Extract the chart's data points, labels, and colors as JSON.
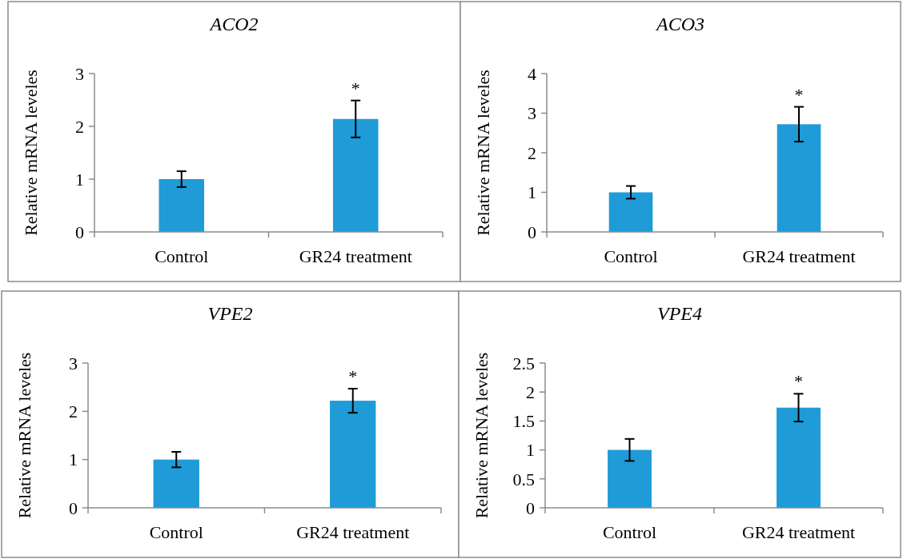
{
  "chart_data": [
    {
      "type": "bar",
      "title": "ACO2",
      "ylabel": "Relative mRNA leveles",
      "categories": [
        "Control",
        "GR24 treatment"
      ],
      "values": [
        1.0,
        2.14
      ],
      "errors": [
        0.15,
        0.35
      ],
      "color": "#1f9bd7",
      "ylim": [
        0,
        3
      ],
      "yticks": [
        0,
        1,
        2,
        3
      ],
      "grid": false,
      "annotations": [
        {
          "text": "*",
          "x": "GR24 treatment",
          "y": 2.49
        }
      ]
    },
    {
      "type": "bar",
      "title": "ACO3",
      "ylabel": "Relative mRNA leveles",
      "categories": [
        "Control",
        "GR24 treatment"
      ],
      "values": [
        1.0,
        2.72
      ],
      "errors": [
        0.16,
        0.44
      ],
      "color": "#1f9bd7",
      "ylim": [
        0,
        4
      ],
      "yticks": [
        0,
        1,
        2,
        3,
        4
      ],
      "grid": false,
      "annotations": [
        {
          "text": "*",
          "x": "GR24 treatment",
          "y": 3.16
        }
      ]
    },
    {
      "type": "bar",
      "title": "VPE2",
      "ylabel": "Relative mRNA leveles",
      "categories": [
        "Control",
        "GR24 treatment"
      ],
      "values": [
        1.0,
        2.22
      ],
      "errors": [
        0.16,
        0.25
      ],
      "color": "#1f9bd7",
      "ylim": [
        0,
        3
      ],
      "yticks": [
        0,
        1,
        2,
        3
      ],
      "grid": false,
      "annotations": [
        {
          "text": "*",
          "x": "GR24 treatment",
          "y": 2.47
        }
      ]
    },
    {
      "type": "bar",
      "title": "VPE4",
      "ylabel": "Relative mRNA leveles",
      "categories": [
        "Control",
        "GR24 treatment"
      ],
      "values": [
        1.0,
        1.73
      ],
      "errors": [
        0.19,
        0.24
      ],
      "color": "#1f9bd7",
      "ylim": [
        0,
        2.5
      ],
      "yticks": [
        0,
        0.5,
        1,
        1.5,
        2,
        2.5
      ],
      "grid": false,
      "annotations": [
        {
          "text": "*",
          "x": "GR24 treatment",
          "y": 1.97
        }
      ]
    }
  ]
}
